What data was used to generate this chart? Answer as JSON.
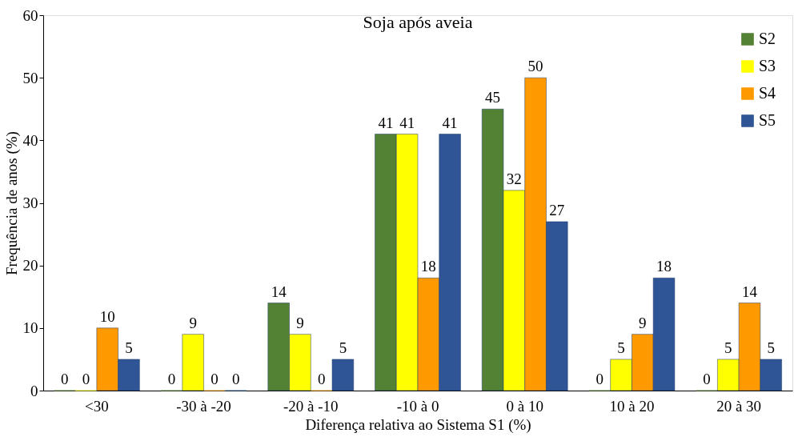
{
  "chart_data": {
    "type": "bar",
    "title": "Soja após aveia",
    "xlabel": "Diferença relativa ao Sistema S1 (%)",
    "ylabel": "Frequência de anos (%)",
    "categories": [
      "<30",
      "-30 à -20",
      "-20 à -10",
      "-10 à 0",
      "0 à 10",
      "10 à 20",
      "20 à 30"
    ],
    "series": [
      {
        "name": "S2",
        "color": "#548235",
        "values": [
          0,
          0,
          14,
          41,
          45,
          0,
          0
        ]
      },
      {
        "name": "S3",
        "color": "#ffff00",
        "values": [
          0,
          9,
          9,
          41,
          32,
          5,
          5
        ]
      },
      {
        "name": "S4",
        "color": "#ff9900",
        "values": [
          10,
          0,
          0,
          18,
          50,
          9,
          14
        ]
      },
      {
        "name": "S5",
        "color": "#2f5597",
        "values": [
          5,
          0,
          5,
          41,
          27,
          18,
          5
        ]
      }
    ],
    "ylim": [
      0,
      60
    ],
    "yticks": [
      0,
      10,
      20,
      30,
      40,
      50,
      60
    ],
    "grid": false,
    "legend": "top right",
    "data_labels": true
  }
}
